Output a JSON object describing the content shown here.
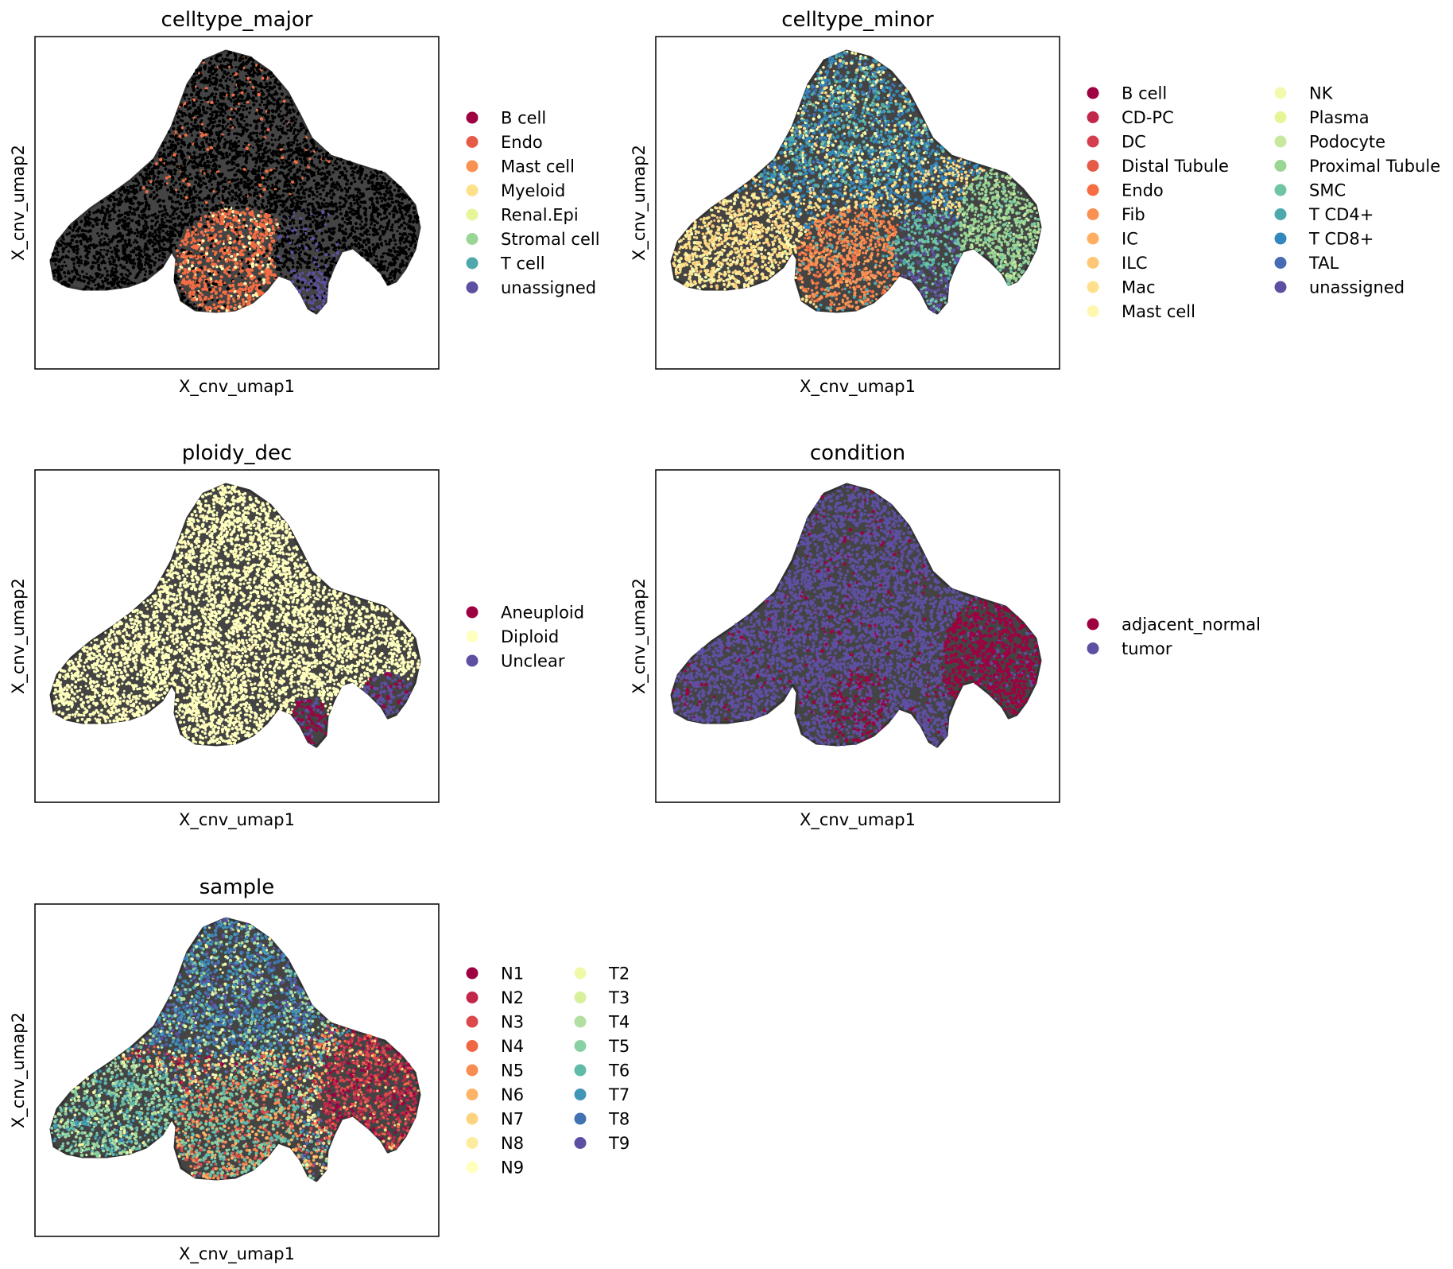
{
  "palette": {
    "B cell": "#9e0142",
    "CD-PC": "#c1274a",
    "DC": "#d53e4f",
    "Distal Tubule": "#e65b48",
    "Endo": "#f46d43",
    "Fib": "#f99153",
    "IC": "#fdae61",
    "ILC": "#fdc776",
    "Mac": "#fee08b",
    "Mast cell": "#fff6b0",
    "NK": "#f2fab0",
    "Plasma": "#e6f598",
    "Podocyte": "#c7e89e",
    "Proximal Tubule": "#99d594",
    "SMC": "#6fc4a4",
    "T CD4+": "#4fa8ac",
    "T CD8+": "#3288bd",
    "TAL": "#466cb4",
    "unassigned": "#5e4fa2"
  },
  "chart_data": [
    {
      "type": "scatter",
      "title": "celltype_major",
      "xlabel": "X_cnv_umap1",
      "ylabel": "X_cnv_umap2",
      "legend_placement": "right",
      "legend": [
        {
          "label": "B cell",
          "color": "#9e0142"
        },
        {
          "label": "Endo",
          "color": "#e65b48"
        },
        {
          "label": "Mast cell",
          "color": "#f99153"
        },
        {
          "label": "Myeloid",
          "color": "#fee08b"
        },
        {
          "label": "Renal.Epi",
          "color": "#e6f598"
        },
        {
          "label": "Stromal cell",
          "color": "#99d594"
        },
        {
          "label": "T cell",
          "color": "#4fa8ac"
        },
        {
          "label": "unassigned",
          "color": "#5e4fa2"
        }
      ]
    },
    {
      "type": "scatter",
      "title": "celltype_minor",
      "xlabel": "X_cnv_umap1",
      "ylabel": "X_cnv_umap2",
      "legend_placement": "right",
      "legend": [
        {
          "label": "B cell",
          "color": "#9e0142"
        },
        {
          "label": "CD-PC",
          "color": "#c1274a"
        },
        {
          "label": "DC",
          "color": "#d53e4f"
        },
        {
          "label": "Distal Tubule",
          "color": "#e65b48"
        },
        {
          "label": "Endo",
          "color": "#f46d43"
        },
        {
          "label": "Fib",
          "color": "#f99153"
        },
        {
          "label": "IC",
          "color": "#fdae61"
        },
        {
          "label": "ILC",
          "color": "#fdc776"
        },
        {
          "label": "Mac",
          "color": "#fee08b"
        },
        {
          "label": "Mast cell",
          "color": "#fff6b0"
        },
        {
          "label": "NK",
          "color": "#f2fab0"
        },
        {
          "label": "Plasma",
          "color": "#e6f598"
        },
        {
          "label": "Podocyte",
          "color": "#c7e89e"
        },
        {
          "label": "Proximal Tubule",
          "color": "#99d594"
        },
        {
          "label": "SMC",
          "color": "#6fc4a4"
        },
        {
          "label": "T CD4+",
          "color": "#4fa8ac"
        },
        {
          "label": "T CD8+",
          "color": "#3288bd"
        },
        {
          "label": "TAL",
          "color": "#466cb4"
        },
        {
          "label": "unassigned",
          "color": "#5e4fa2"
        }
      ]
    },
    {
      "type": "scatter",
      "title": "ploidy_dec",
      "xlabel": "X_cnv_umap1",
      "ylabel": "X_cnv_umap2",
      "legend_placement": "right",
      "legend": [
        {
          "label": "Aneuploid",
          "color": "#9e0142"
        },
        {
          "label": "Diploid",
          "color": "#ffffbf"
        },
        {
          "label": "Unclear",
          "color": "#5e4fa2"
        }
      ]
    },
    {
      "type": "scatter",
      "title": "condition",
      "xlabel": "X_cnv_umap1",
      "ylabel": "X_cnv_umap2",
      "legend_placement": "right",
      "legend": [
        {
          "label": "adjacent_normal",
          "color": "#9e0142"
        },
        {
          "label": "tumor",
          "color": "#5e4fa2"
        }
      ]
    },
    {
      "type": "scatter",
      "title": "sample",
      "xlabel": "X_cnv_umap1",
      "ylabel": "X_cnv_umap2",
      "legend_placement": "right",
      "legend": [
        {
          "label": "N1",
          "color": "#9e0142"
        },
        {
          "label": "N2",
          "color": "#c1274a"
        },
        {
          "label": "N3",
          "color": "#dc494c"
        },
        {
          "label": "N4",
          "color": "#f06744"
        },
        {
          "label": "N5",
          "color": "#f88c51"
        },
        {
          "label": "N6",
          "color": "#fdb466"
        },
        {
          "label": "N7",
          "color": "#fdd380"
        },
        {
          "label": "N8",
          "color": "#feeb9e"
        },
        {
          "label": "N9",
          "color": "#ffffbe"
        },
        {
          "label": "T2",
          "color": "#f0f9a7"
        },
        {
          "label": "T3",
          "color": "#d8ef9b"
        },
        {
          "label": "T4",
          "color": "#b3e0a2"
        },
        {
          "label": "T5",
          "color": "#89d0a4"
        },
        {
          "label": "T6",
          "color": "#5fbaa8"
        },
        {
          "label": "T7",
          "color": "#3f96b7"
        },
        {
          "label": "T8",
          "color": "#4272b2"
        },
        {
          "label": "T9",
          "color": "#5e4fa2"
        }
      ]
    }
  ]
}
